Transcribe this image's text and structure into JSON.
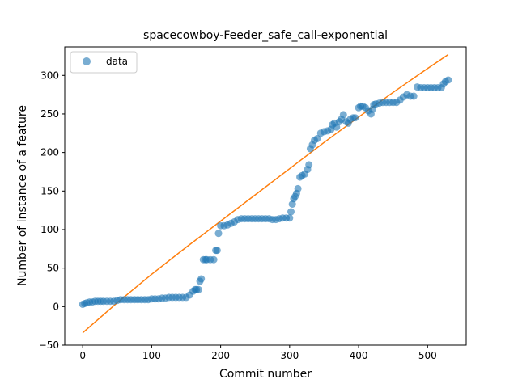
{
  "chart_data": {
    "type": "scatter",
    "title": "spacecowboy-Feeder_safe_call-exponential",
    "xlabel": "Commit number",
    "ylabel": "Number of instance of a feature",
    "xlim": [
      -26,
      556
    ],
    "ylim": [
      -50,
      337
    ],
    "x_ticks": [
      0,
      100,
      200,
      300,
      400,
      500
    ],
    "y_ticks": [
      -50,
      0,
      50,
      100,
      150,
      200,
      250,
      300
    ],
    "grid": false,
    "legend_position": "upper-left",
    "colors": {
      "data": "#1f77b4",
      "fit": "#ff7f0e"
    },
    "series": [
      {
        "name": "data",
        "style": "markers",
        "x": [
          0,
          3,
          6,
          10,
          14,
          18,
          22,
          26,
          30,
          35,
          40,
          45,
          50,
          55,
          60,
          65,
          70,
          75,
          80,
          85,
          90,
          95,
          100,
          105,
          110,
          115,
          120,
          125,
          130,
          135,
          140,
          145,
          150,
          155,
          160,
          163,
          165,
          168,
          170,
          172,
          175,
          178,
          180,
          185,
          190,
          193,
          195,
          197,
          200,
          205,
          210,
          215,
          220,
          225,
          230,
          235,
          240,
          245,
          250,
          255,
          260,
          265,
          270,
          275,
          280,
          285,
          290,
          295,
          300,
          302,
          304,
          306,
          308,
          310,
          312,
          315,
          318,
          322,
          326,
          328,
          330,
          333,
          336,
          340,
          345,
          350,
          355,
          360,
          362,
          365,
          368,
          372,
          375,
          378,
          382,
          385,
          388,
          392,
          395,
          400,
          403,
          406,
          410,
          414,
          418,
          420,
          422,
          425,
          430,
          435,
          440,
          445,
          450,
          455,
          460,
          465,
          470,
          475,
          480,
          485,
          490,
          495,
          500,
          505,
          510,
          515,
          520,
          523,
          526,
          530
        ],
        "y": [
          3,
          4,
          5,
          6,
          6,
          7,
          7,
          7,
          7,
          7,
          7,
          7,
          8,
          9,
          9,
          9,
          9,
          9,
          9,
          9,
          9,
          9,
          10,
          10,
          10,
          11,
          11,
          12,
          12,
          12,
          12,
          12,
          12,
          15,
          20,
          22,
          22,
          22,
          33,
          36,
          61,
          61,
          61,
          61,
          61,
          73,
          73,
          95,
          105,
          105,
          106,
          108,
          110,
          113,
          114,
          114,
          114,
          114,
          114,
          114,
          114,
          114,
          114,
          113,
          113,
          114,
          115,
          115,
          115,
          123,
          133,
          140,
          143,
          147,
          153,
          168,
          170,
          172,
          178,
          184,
          205,
          210,
          216,
          218,
          225,
          227,
          228,
          230,
          236,
          238,
          233,
          240,
          243,
          249,
          240,
          238,
          243,
          245,
          245,
          258,
          260,
          260,
          258,
          254,
          250,
          256,
          262,
          263,
          264,
          265,
          265,
          265,
          265,
          265,
          268,
          272,
          275,
          273,
          273,
          285,
          284,
          284,
          284,
          284,
          284,
          284,
          284,
          289,
          292,
          294
        ]
      },
      {
        "name": "",
        "style": "line",
        "x": [
          0,
          50,
          100,
          150,
          200,
          250,
          300,
          350,
          400,
          450,
          500,
          530
        ],
        "y": [
          -34,
          5,
          42,
          77,
          111,
          145,
          179,
          213,
          246,
          278,
          309,
          327
        ]
      }
    ]
  }
}
